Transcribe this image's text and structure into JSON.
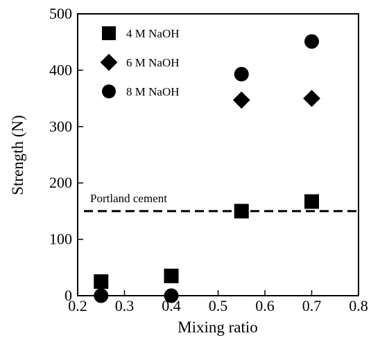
{
  "chart_data": {
    "type": "scatter",
    "xlabel": "Mixing ratio",
    "ylabel": "Strength (N)",
    "xlim": [
      0.2,
      0.8
    ],
    "ylim": [
      0,
      500
    ],
    "x_ticks": [
      "0.2",
      "0.3",
      "0.4",
      "0.5",
      "0.6",
      "0.7",
      "0.8"
    ],
    "y_ticks": [
      "0",
      "100",
      "200",
      "300",
      "400",
      "500"
    ],
    "grid": false,
    "legend_position": "top-left",
    "series": [
      {
        "name": "4 M NaOH",
        "marker": "square",
        "color": "#000000",
        "points": [
          [
            0.25,
            25
          ],
          [
            0.4,
            35
          ],
          [
            0.55,
            150
          ],
          [
            0.7,
            167
          ]
        ]
      },
      {
        "name": "6 M NaOH",
        "marker": "diamond",
        "color": "#000000",
        "points": [
          [
            0.55,
            347
          ],
          [
            0.7,
            350
          ]
        ]
      },
      {
        "name": "8 M NaOH",
        "marker": "circle",
        "color": "#000000",
        "points": [
          [
            0.25,
            0
          ],
          [
            0.4,
            0
          ],
          [
            0.55,
            393
          ],
          [
            0.7,
            451
          ]
        ]
      }
    ],
    "reference_line": {
      "label": "Portland cement",
      "y": 150,
      "style": "dashed",
      "color": "#000000"
    }
  }
}
